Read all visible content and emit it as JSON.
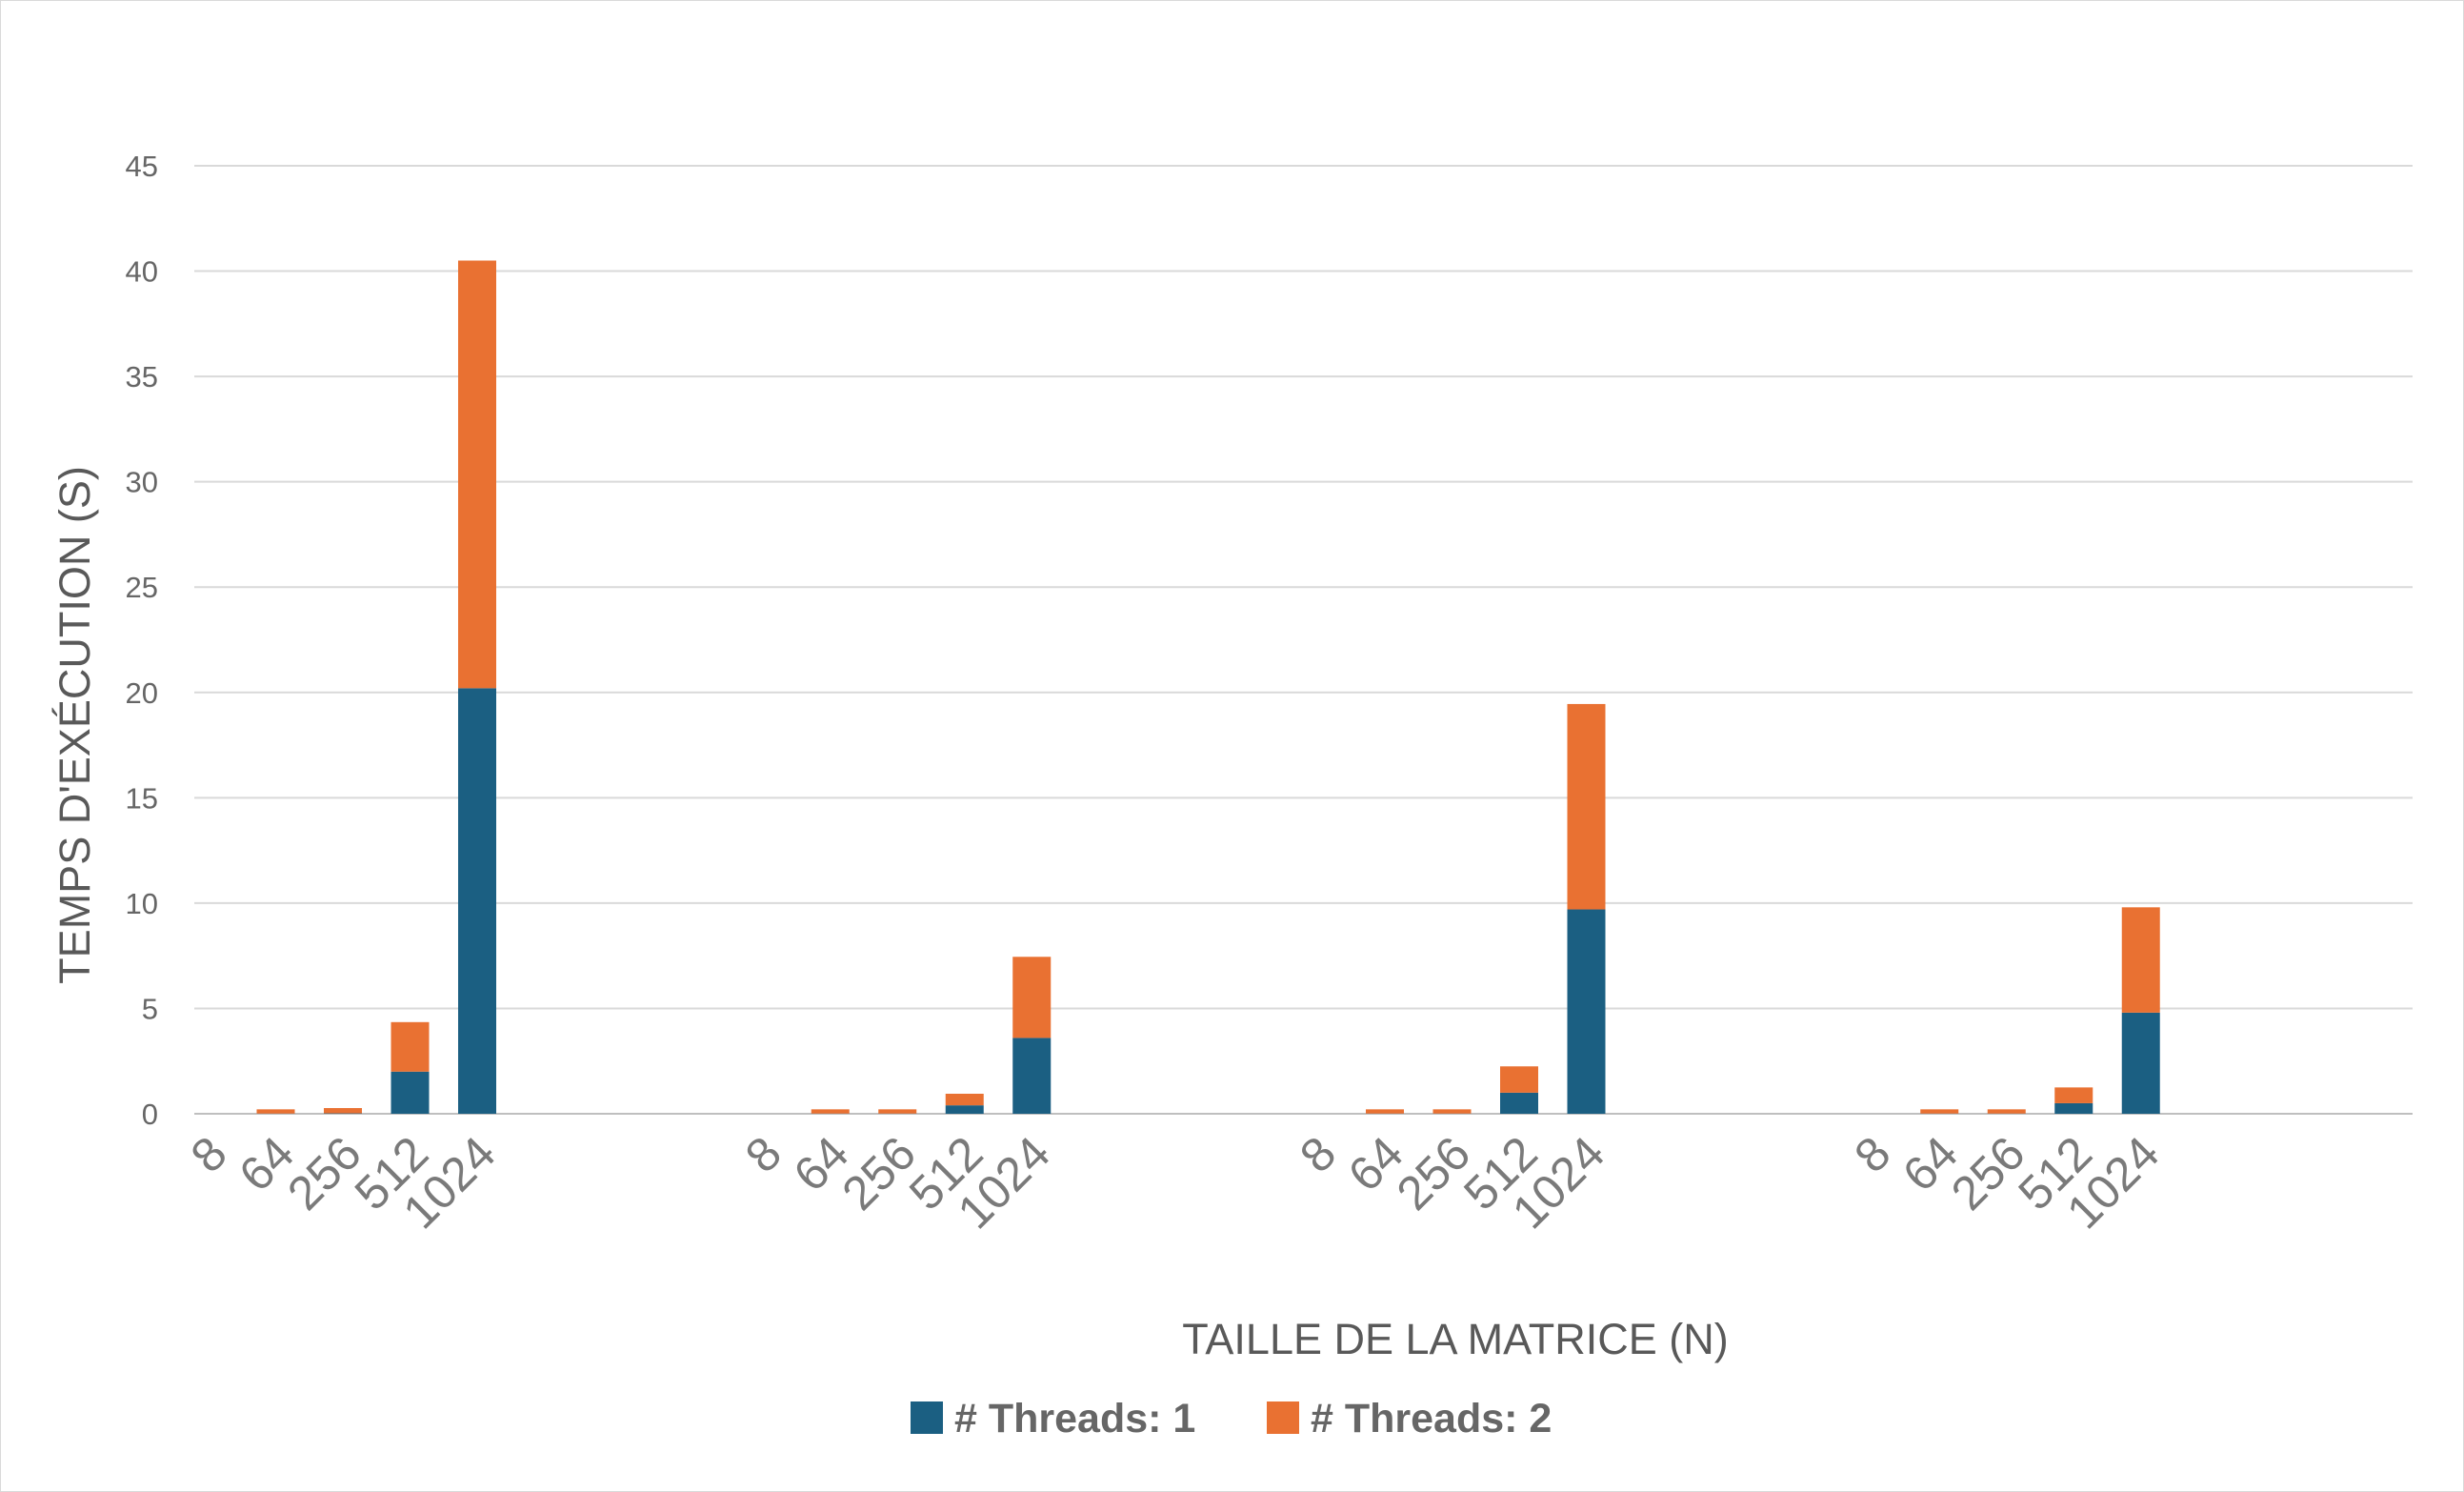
{
  "chart_data": {
    "type": "bar",
    "stacked": true,
    "title": "",
    "xlabel": "TAILLE DE LA MATRICE (N)",
    "ylabel": "TEMPS D'EXÉCUTION (S)",
    "ylim": [
      0,
      45
    ],
    "yticks": [
      0,
      5,
      10,
      15,
      20,
      25,
      30,
      35,
      40,
      45
    ],
    "grid": true,
    "legend_position": "bottom",
    "groups": [
      {
        "categories": [
          "8",
          "64",
          "256",
          "512",
          "1024"
        ]
      },
      {
        "categories": [
          "8",
          "64",
          "256",
          "512",
          "1024"
        ]
      },
      {
        "categories": [
          "8",
          "64",
          "256",
          "512",
          "1024"
        ]
      },
      {
        "categories": [
          "8",
          "64",
          "256",
          "512",
          "1024"
        ]
      }
    ],
    "series": [
      {
        "name": "# Threads: 1",
        "color": "#1b5f82",
        "values": [
          [
            0,
            0.01,
            0.02,
            2.0,
            20.2
          ],
          [
            0,
            0.01,
            0.01,
            0.4,
            3.6
          ],
          [
            0,
            0.01,
            0.01,
            1.0,
            9.7
          ],
          [
            0,
            0.01,
            0.01,
            0.5,
            4.8
          ]
        ]
      },
      {
        "name": "# Threads: 2",
        "color": "#e97132",
        "values": [
          [
            0,
            0.2,
            0.25,
            2.35,
            20.3
          ],
          [
            0,
            0.2,
            0.2,
            0.55,
            3.85
          ],
          [
            0,
            0.2,
            0.2,
            1.25,
            9.75
          ],
          [
            0,
            0.2,
            0.2,
            0.75,
            5.0
          ]
        ]
      }
    ]
  }
}
